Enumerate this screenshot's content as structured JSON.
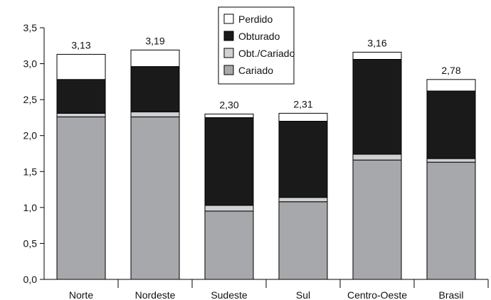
{
  "chart_data": {
    "type": "bar",
    "stacked": true,
    "categories": [
      "Norte",
      "Nordeste",
      "Sudeste",
      "Sul",
      "Centro-Oeste",
      "Brasil"
    ],
    "series": [
      {
        "name": "Cariado",
        "values": [
          2.26,
          2.26,
          0.95,
          1.08,
          1.66,
          1.63
        ],
        "color": "#a7a8ab"
      },
      {
        "name": "Obt./Cariado",
        "values": [
          0.05,
          0.07,
          0.08,
          0.06,
          0.08,
          0.05
        ],
        "color": "#d0d1d3"
      },
      {
        "name": "Obturado",
        "values": [
          0.47,
          0.63,
          1.22,
          1.06,
          1.32,
          0.94
        ],
        "color": "#1a1a1a"
      },
      {
        "name": "Perdido",
        "values": [
          0.35,
          0.23,
          0.05,
          0.11,
          0.1,
          0.16
        ],
        "color": "#ffffff"
      }
    ],
    "totals": [
      "3,13",
      "3,19",
      "2,30",
      "2,31",
      "3,16",
      "2,78"
    ],
    "ylim": [
      0,
      3.5
    ],
    "yticks": [
      "0,0",
      "0,5",
      "1,0",
      "1,5",
      "2,0",
      "2,5",
      "3,0",
      "3,5"
    ],
    "legend_order": [
      "Perdido",
      "Obturado",
      "Obt./Cariado",
      "Cariado"
    ],
    "legend_position": "top-center",
    "grid": false,
    "title": "",
    "xlabel": "",
    "ylabel": ""
  }
}
